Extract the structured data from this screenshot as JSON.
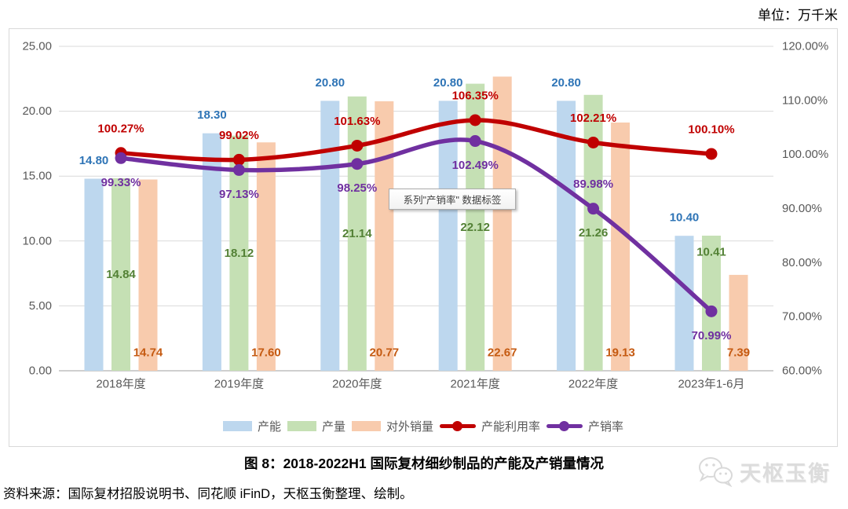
{
  "unit_label": "单位：万千米",
  "tooltip": {
    "text": "系列\"产销率\" 数据标签"
  },
  "caption": "图 8：2018-2022H1 国际复材细纱制品的产能及产销量情况",
  "source": "资料来源：国际复材招股说明书、同花顺 iFinD，天枢玉衡整理、绘制。",
  "watermark": {
    "text": "天枢玉衡",
    "icon": "wechat-chat-bubbles-icon"
  },
  "colors": {
    "axis_text": "#595959",
    "gridline": "#D9D9D9",
    "baseline": "#BFBFBF",
    "chart_border": "#D9D9D9"
  },
  "chart_data": {
    "type": "bar",
    "subtype": "combo-bar-line-dual-axis",
    "categories": [
      "2018年度",
      "2019年度",
      "2020年度",
      "2021年度",
      "2022年度",
      "2023年1-6月"
    ],
    "left_axis": {
      "min": 0,
      "max": 25,
      "step": 5,
      "tick_labels": [
        "0.00",
        "5.00",
        "10.00",
        "15.00",
        "20.00",
        "25.00"
      ]
    },
    "right_axis": {
      "min": 60,
      "max": 120,
      "step": 10,
      "tick_labels": [
        "60.00%",
        "70.00%",
        "80.00%",
        "90.00%",
        "100.00%",
        "110.00%",
        "120.00%"
      ]
    },
    "grid": true,
    "legend_position": "bottom",
    "bar_series": [
      {
        "name": "产能",
        "color": "#BDD7EE",
        "label_color": "#2E74B6",
        "values": [
          14.8,
          18.3,
          20.8,
          20.8,
          20.8,
          10.4
        ],
        "labels": [
          "14.80",
          "18.30",
          "20.80",
          "20.80",
          "20.80",
          "10.40"
        ],
        "label_placement": "above",
        "placement_overrides": {}
      },
      {
        "name": "产量",
        "color": "#C5E0B4",
        "label_color": "#538135",
        "values": [
          14.84,
          18.12,
          21.14,
          22.12,
          21.26,
          10.41
        ],
        "labels": [
          "14.84",
          "18.12",
          "21.14",
          "22.12",
          "21.26",
          "10.41"
        ],
        "label_placement": "center",
        "placement_overrides": {
          "5": "inside-end"
        }
      },
      {
        "name": "对外销量",
        "color": "#F8CBAD",
        "label_color": "#C55A11",
        "values": [
          14.74,
          17.6,
          20.77,
          22.67,
          19.13,
          7.39
        ],
        "labels": [
          "14.74",
          "17.60",
          "20.77",
          "22.67",
          "19.13",
          "7.39"
        ],
        "label_placement": "inside-base",
        "placement_overrides": {}
      }
    ],
    "line_series": [
      {
        "name": "产能利用率",
        "color": "#C00000",
        "values": [
          100.27,
          99.02,
          101.63,
          106.35,
          102.21,
          100.1
        ],
        "labels": [
          "100.27%",
          "99.02%",
          "101.63%",
          "106.35%",
          "102.21%",
          "100.10%"
        ],
        "label_placement": "above",
        "placement_overrides": {}
      },
      {
        "name": "产销率",
        "color": "#7030A0",
        "values": [
          99.33,
          97.13,
          98.25,
          102.49,
          89.98,
          70.99
        ],
        "labels": [
          "99.33%",
          "97.13%",
          "98.25%",
          "102.49%",
          "89.98%",
          "70.99%"
        ],
        "label_placement": "below",
        "placement_overrides": {
          "4": "above"
        }
      }
    ]
  }
}
